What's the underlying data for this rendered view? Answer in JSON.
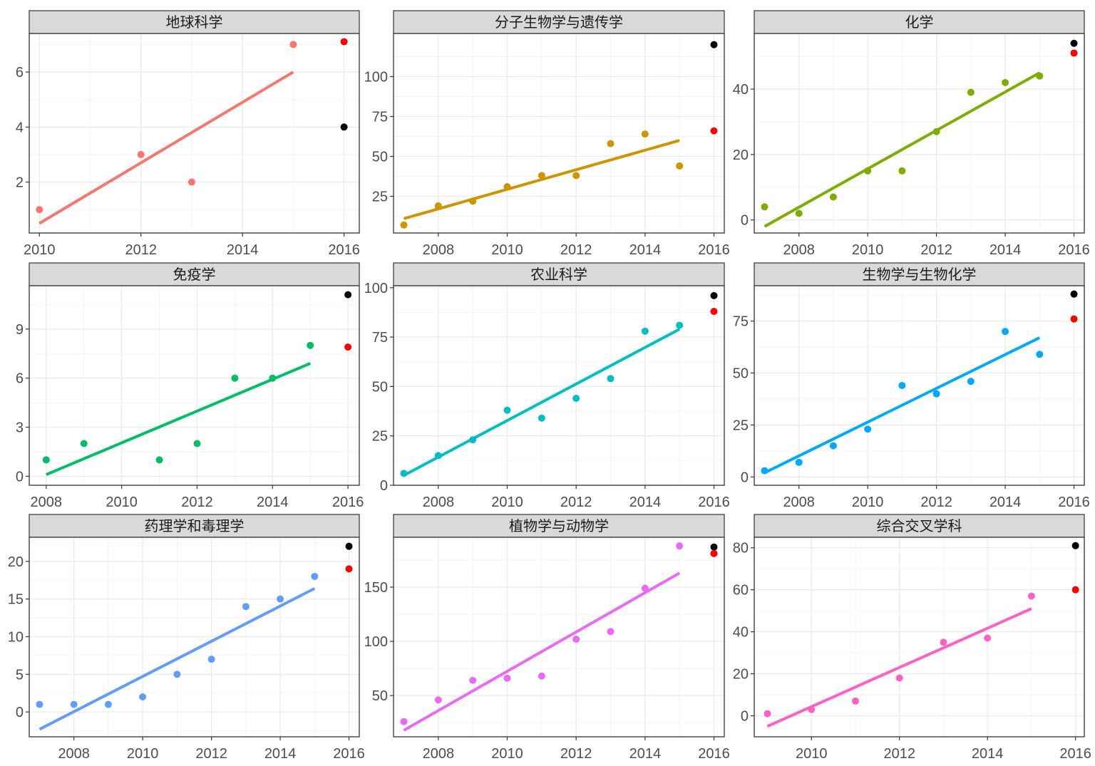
{
  "colors": {
    "actual_2016": "#ff0000",
    "predicted_2016": "#000000"
  },
  "chart_data": [
    {
      "type": "scatter",
      "title": "地球科学",
      "color": "#f8766d",
      "xlim": [
        2009.8,
        2016.3
      ],
      "ylim": [
        0.15,
        7.4
      ],
      "xticks": [
        2010,
        2012,
        2014,
        2016
      ],
      "yticks": [
        2,
        4,
        6
      ],
      "x": [
        2010,
        2012,
        2013,
        2015
      ],
      "y": [
        1,
        3,
        2,
        7
      ],
      "fit": {
        "x": [
          2010,
          2015
        ],
        "y": [
          0.5,
          6
        ]
      },
      "points_2016": {
        "red": 7.1,
        "black": 4
      }
    },
    {
      "type": "scatter",
      "title": "分子生物学与遗传学",
      "color": "#cd9600",
      "xlim": [
        2006.7,
        2016.3
      ],
      "ylim": [
        2,
        127
      ],
      "xticks": [
        2008,
        2010,
        2012,
        2014,
        2016
      ],
      "yticks": [
        25,
        50,
        75,
        100
      ],
      "x": [
        2007,
        2008,
        2009,
        2010,
        2011,
        2012,
        2013,
        2014,
        2015
      ],
      "y": [
        7,
        19,
        22,
        31,
        38,
        38,
        58,
        64,
        44
      ],
      "fit": {
        "x": [
          2007,
          2015
        ],
        "y": [
          11,
          60
        ]
      },
      "points_2016": {
        "red": 66,
        "black": 120
      }
    },
    {
      "type": "scatter",
      "title": "化学",
      "color": "#7cae00",
      "xlim": [
        2006.7,
        2016.3
      ],
      "ylim": [
        -4,
        57
      ],
      "xticks": [
        2008,
        2010,
        2012,
        2014,
        2016
      ],
      "yticks": [
        0,
        20,
        40
      ],
      "x": [
        2007,
        2008,
        2009,
        2010,
        2011,
        2012,
        2013,
        2014,
        2015
      ],
      "y": [
        4,
        2,
        7,
        15,
        15,
        27,
        39,
        42,
        44
      ],
      "fit": {
        "x": [
          2007,
          2015
        ],
        "y": [
          -2,
          45
        ]
      },
      "points_2016": {
        "red": 51,
        "black": 54
      }
    },
    {
      "type": "scatter",
      "title": "免疫学",
      "color": "#00be67",
      "xlim": [
        2007.55,
        2016.3
      ],
      "ylim": [
        -0.55,
        11.65
      ],
      "xticks": [
        2008,
        2010,
        2012,
        2014,
        2016
      ],
      "yticks": [
        0,
        3,
        6,
        9
      ],
      "x": [
        2008,
        2009,
        2011,
        2012,
        2013,
        2014,
        2015
      ],
      "y": [
        1,
        2,
        1,
        2,
        6,
        6,
        8
      ],
      "fit": {
        "x": [
          2008,
          2015
        ],
        "y": [
          0.1,
          6.9
        ]
      },
      "points_2016": {
        "red": 7.9,
        "black": 11.1
      }
    },
    {
      "type": "scatter",
      "title": "农业科学",
      "color": "#00bfc4",
      "xlim": [
        2006.7,
        2016.3
      ],
      "ylim": [
        0,
        101
      ],
      "xticks": [
        2008,
        2010,
        2012,
        2014,
        2016
      ],
      "yticks": [
        0,
        25,
        50,
        75,
        100
      ],
      "x": [
        2007,
        2008,
        2009,
        2010,
        2011,
        2012,
        2013,
        2014,
        2015
      ],
      "y": [
        6,
        15,
        23,
        38,
        34,
        44,
        54,
        78,
        81
      ],
      "fit": {
        "x": [
          2007,
          2015
        ],
        "y": [
          5,
          79
        ]
      },
      "points_2016": {
        "red": 88,
        "black": 96
      }
    },
    {
      "type": "scatter",
      "title": "生物学与生物化学",
      "color": "#00a9ff",
      "xlim": [
        2006.7,
        2016.3
      ],
      "ylim": [
        -4,
        92
      ],
      "xticks": [
        2008,
        2010,
        2012,
        2014,
        2016
      ],
      "yticks": [
        0,
        25,
        50,
        75
      ],
      "x": [
        2007,
        2008,
        2009,
        2010,
        2011,
        2012,
        2013,
        2014,
        2015
      ],
      "y": [
        3,
        7,
        15,
        23,
        44,
        40,
        46,
        70,
        59
      ],
      "fit": {
        "x": [
          2007,
          2015
        ],
        "y": [
          2,
          67
        ]
      },
      "points_2016": {
        "red": 76,
        "black": 88
      }
    },
    {
      "type": "scatter",
      "title": "药理学和毒理学",
      "color": "#619cff",
      "xlim": [
        2006.7,
        2016.3
      ],
      "ylim": [
        -3.3,
        23.2
      ],
      "xticks": [
        2008,
        2010,
        2012,
        2014,
        2016
      ],
      "yticks": [
        0,
        5,
        10,
        15,
        20
      ],
      "x": [
        2007,
        2008,
        2009,
        2010,
        2011,
        2012,
        2013,
        2014,
        2015
      ],
      "y": [
        1,
        1,
        1,
        2,
        5,
        7,
        14,
        15,
        18
      ],
      "fit": {
        "x": [
          2007,
          2015
        ],
        "y": [
          -2.3,
          16.4
        ]
      },
      "points_2016": {
        "red": 19,
        "black": 22
      }
    },
    {
      "type": "scatter",
      "title": "植物学与动物学",
      "color": "#e76bf3",
      "xlim": [
        2006.7,
        2016.3
      ],
      "ylim": [
        12,
        196
      ],
      "xticks": [
        2008,
        2010,
        2012,
        2014,
        2016
      ],
      "yticks": [
        50,
        100,
        150
      ],
      "x": [
        2007,
        2008,
        2009,
        2010,
        2011,
        2012,
        2013,
        2014,
        2015
      ],
      "y": [
        26,
        46,
        64,
        66,
        68,
        102,
        109,
        149,
        188
      ],
      "fit": {
        "x": [
          2007,
          2015
        ],
        "y": [
          18,
          163
        ]
      },
      "points_2016": {
        "red": 181,
        "black": 187
      }
    },
    {
      "type": "scatter",
      "title": "综合交叉学科",
      "color": "#ff61c3",
      "xlim": [
        2008.7,
        2016.2
      ],
      "ylim": [
        -10,
        85
      ],
      "xticks": [
        2010,
        2012,
        2014,
        2016
      ],
      "yticks": [
        0,
        20,
        40,
        60,
        80
      ],
      "x": [
        2009,
        2010,
        2011,
        2012,
        2013,
        2014,
        2015
      ],
      "y": [
        1,
        3,
        7,
        18,
        35,
        37,
        57
      ],
      "fit": {
        "x": [
          2009,
          2015
        ],
        "y": [
          -5,
          51
        ]
      },
      "points_2016": {
        "red": 60,
        "black": 81
      }
    }
  ]
}
